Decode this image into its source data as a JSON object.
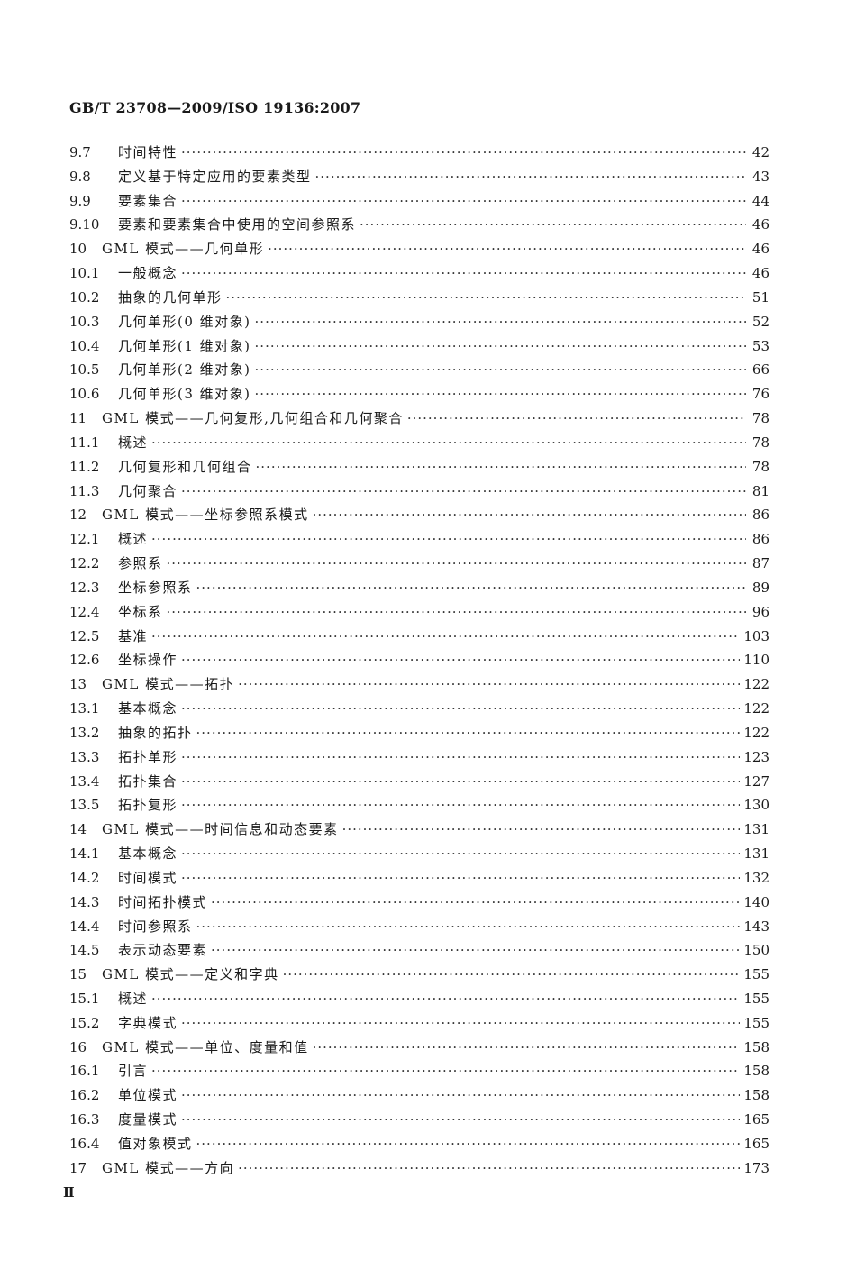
{
  "header": "GB/T 23708—2009/ISO 19136:2007",
  "toc": [
    {
      "num": "9.7",
      "title": "时间特性",
      "page": "42"
    },
    {
      "num": "9.8",
      "title": "定义基于特定应用的要素类型",
      "page": "43"
    },
    {
      "num": "9.9",
      "title": "要素集合",
      "page": "44"
    },
    {
      "num": "9.10",
      "title": "要素和要素集合中使用的空间参照系",
      "page": "46"
    },
    {
      "num": "10",
      "title": "GML 模式——几何单形",
      "page": "46"
    },
    {
      "num": "10.1",
      "title": "一般概念",
      "page": "46"
    },
    {
      "num": "10.2",
      "title": "抽象的几何单形",
      "page": "51"
    },
    {
      "num": "10.3",
      "title": "几何单形(0 维对象)",
      "page": "52"
    },
    {
      "num": "10.4",
      "title": "几何单形(1 维对象)",
      "page": "53"
    },
    {
      "num": "10.5",
      "title": "几何单形(2 维对象)",
      "page": "66"
    },
    {
      "num": "10.6",
      "title": "几何单形(3 维对象)",
      "page": "76"
    },
    {
      "num": "11",
      "title": "GML 模式——几何复形,几何组合和几何聚合",
      "page": "78"
    },
    {
      "num": "11.1",
      "title": "概述",
      "page": "78"
    },
    {
      "num": "11.2",
      "title": "几何复形和几何组合",
      "page": "78"
    },
    {
      "num": "11.3",
      "title": "几何聚合",
      "page": "81"
    },
    {
      "num": "12",
      "title": "GML 模式——坐标参照系模式",
      "page": "86"
    },
    {
      "num": "12.1",
      "title": "概述",
      "page": "86"
    },
    {
      "num": "12.2",
      "title": "参照系",
      "page": "87"
    },
    {
      "num": "12.3",
      "title": "坐标参照系",
      "page": "89"
    },
    {
      "num": "12.4",
      "title": "坐标系",
      "page": "96"
    },
    {
      "num": "12.5",
      "title": "基准",
      "page": "103"
    },
    {
      "num": "12.6",
      "title": "坐标操作",
      "page": "110"
    },
    {
      "num": "13",
      "title": "GML 模式——拓扑",
      "page": "122"
    },
    {
      "num": "13.1",
      "title": "基本概念",
      "page": "122"
    },
    {
      "num": "13.2",
      "title": "抽象的拓扑",
      "page": "122"
    },
    {
      "num": "13.3",
      "title": "拓扑单形",
      "page": "123"
    },
    {
      "num": "13.4",
      "title": "拓扑集合",
      "page": "127"
    },
    {
      "num": "13.5",
      "title": "拓扑复形",
      "page": "130"
    },
    {
      "num": "14",
      "title": "GML 模式——时间信息和动态要素",
      "page": "131"
    },
    {
      "num": "14.1",
      "title": "基本概念",
      "page": "131"
    },
    {
      "num": "14.2",
      "title": "时间模式",
      "page": "132"
    },
    {
      "num": "14.3",
      "title": "时间拓扑模式",
      "page": "140"
    },
    {
      "num": "14.4",
      "title": "时间参照系",
      "page": "143"
    },
    {
      "num": "14.5",
      "title": "表示动态要素",
      "page": "150"
    },
    {
      "num": "15",
      "title": "GML 模式——定义和字典",
      "page": "155"
    },
    {
      "num": "15.1",
      "title": "概述",
      "page": "155"
    },
    {
      "num": "15.2",
      "title": "字典模式",
      "page": "155"
    },
    {
      "num": "16",
      "title": "GML 模式——单位、度量和值",
      "page": "158"
    },
    {
      "num": "16.1",
      "title": "引言",
      "page": "158"
    },
    {
      "num": "16.2",
      "title": "单位模式",
      "page": "158"
    },
    {
      "num": "16.3",
      "title": "度量模式",
      "page": "165"
    },
    {
      "num": "16.4",
      "title": "值对象模式",
      "page": "165"
    },
    {
      "num": "17",
      "title": "GML 模式——方向",
      "page": "173"
    }
  ],
  "footer": "Ⅱ"
}
